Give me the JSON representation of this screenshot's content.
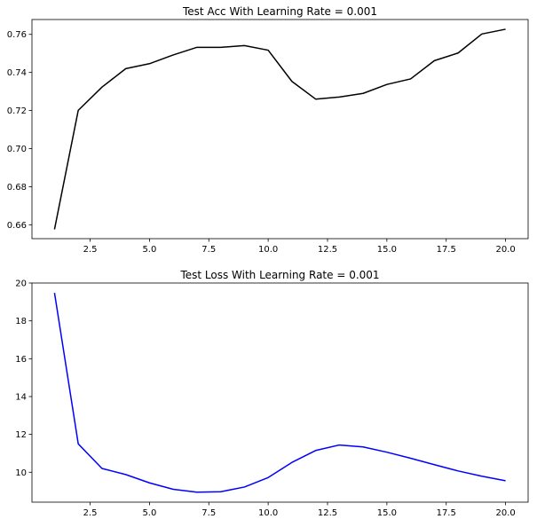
{
  "chart_data": [
    {
      "type": "line",
      "title": "Test Acc With Learning Rate = 0.001",
      "xlabel": "",
      "ylabel": "",
      "color": "#000000",
      "grid": false,
      "xlim": [
        0.05,
        20.95
      ],
      "ylim": [
        0.6527,
        0.7678
      ],
      "xticks": [
        2.5,
        5.0,
        7.5,
        10.0,
        12.5,
        15.0,
        17.5,
        20.0
      ],
      "xtick_labels": [
        "2.5",
        "5.0",
        "7.5",
        "10.0",
        "12.5",
        "15.0",
        "17.5",
        "20.0"
      ],
      "yticks": [
        0.66,
        0.68,
        0.7,
        0.72,
        0.74,
        0.76
      ],
      "ytick_labels": [
        "0.66",
        "0.68",
        "0.70",
        "0.72",
        "0.74",
        "0.76"
      ],
      "x": [
        1,
        2,
        3,
        4,
        5,
        6,
        7,
        8,
        9,
        10,
        11,
        12,
        13,
        14,
        15,
        16,
        17,
        18,
        19,
        20
      ],
      "y": [
        0.6576,
        0.7201,
        0.7323,
        0.742,
        0.7446,
        0.7492,
        0.7532,
        0.7532,
        0.7541,
        0.7517,
        0.7353,
        0.726,
        0.7271,
        0.729,
        0.7337,
        0.7366,
        0.7462,
        0.7502,
        0.7602,
        0.7627
      ]
    },
    {
      "type": "line",
      "title": "Test Loss With Learning Rate = 0.001",
      "xlabel": "",
      "ylabel": "",
      "color": "#0000ff",
      "grid": false,
      "xlim": [
        0.05,
        20.95
      ],
      "ylim": [
        8.42,
        20.0
      ],
      "xticks": [
        2.5,
        5.0,
        7.5,
        10.0,
        12.5,
        15.0,
        17.5,
        20.0
      ],
      "xtick_labels": [
        "2.5",
        "5.0",
        "7.5",
        "10.0",
        "12.5",
        "15.0",
        "17.5",
        "20.0"
      ],
      "yticks": [
        10,
        12,
        14,
        16,
        18,
        20
      ],
      "ytick_labels": [
        "10",
        "12",
        "14",
        "16",
        "18",
        "20"
      ],
      "x": [
        1,
        2,
        3,
        4,
        5,
        6,
        7,
        8,
        9,
        10,
        11,
        12,
        13,
        14,
        15,
        16,
        17,
        18,
        19,
        20
      ],
      "y": [
        19.48,
        11.5,
        10.2,
        9.88,
        9.44,
        9.1,
        8.95,
        8.97,
        9.22,
        9.72,
        10.52,
        11.15,
        11.44,
        11.34,
        11.06,
        10.74,
        10.4,
        10.07,
        9.79,
        9.55
      ]
    }
  ]
}
